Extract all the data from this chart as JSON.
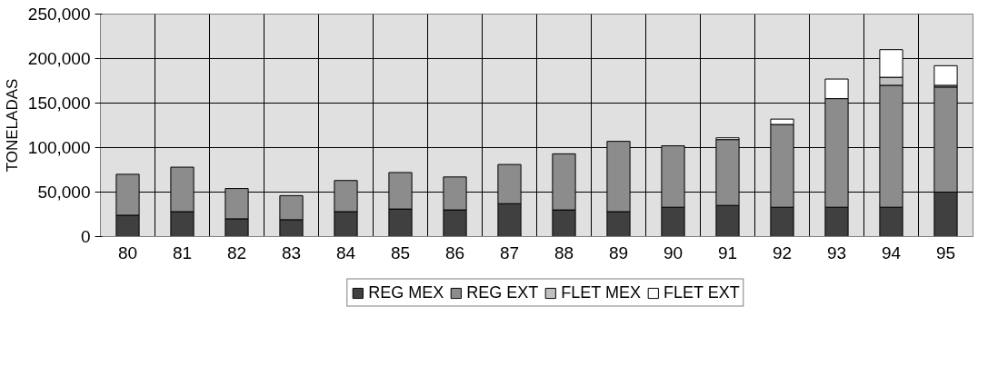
{
  "chart_data": {
    "type": "bar",
    "stacked": true,
    "ylabel": "TONELADAS",
    "categories": [
      "80",
      "81",
      "82",
      "83",
      "84",
      "85",
      "86",
      "87",
      "88",
      "89",
      "90",
      "91",
      "92",
      "93",
      "94",
      "95"
    ],
    "series": [
      {
        "name": "REG MEX",
        "color": "#404040",
        "values": [
          24000,
          28000,
          20000,
          19000,
          28000,
          31000,
          30000,
          37000,
          30000,
          28000,
          33000,
          35000,
          33000,
          33000,
          33000,
          50000
        ]
      },
      {
        "name": "REG EXT",
        "color": "#8c8c8c",
        "values": [
          46000,
          50000,
          34000,
          27000,
          35000,
          41000,
          37000,
          44000,
          63000,
          79000,
          69000,
          74000,
          93000,
          122000,
          137000,
          118000
        ]
      },
      {
        "name": "FLET MEX",
        "color": "#c0c0c0",
        "values": [
          0,
          0,
          0,
          0,
          0,
          0,
          0,
          0,
          0,
          0,
          0,
          0,
          0,
          0,
          9000,
          2000
        ]
      },
      {
        "name": "FLET EXT",
        "color": "#ffffff",
        "values": [
          0,
          0,
          0,
          0,
          0,
          0,
          0,
          0,
          0,
          0,
          0,
          2000,
          6000,
          22000,
          31000,
          22000
        ]
      }
    ],
    "ylim": [
      0,
      250000
    ],
    "yticks": [
      {
        "value": 0,
        "label": "0"
      },
      {
        "value": 50000,
        "label": "50,000"
      },
      {
        "value": 100000,
        "label": "100,000"
      },
      {
        "value": 150000,
        "label": "150,000"
      },
      {
        "value": 200000,
        "label": "200,000"
      },
      {
        "value": 250000,
        "label": "250,000"
      }
    ],
    "grid": true,
    "legend": "bottom"
  }
}
